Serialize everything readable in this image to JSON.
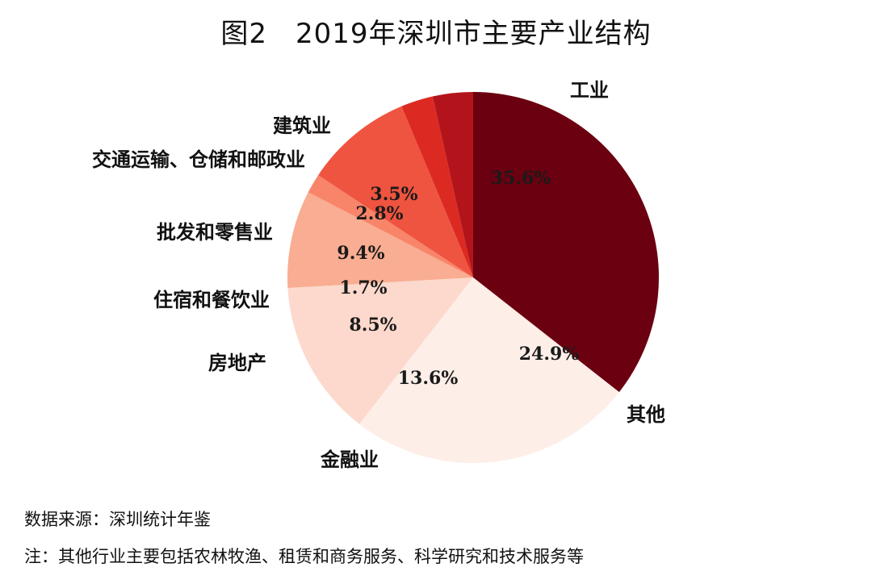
{
  "chart_data": {
    "type": "pie",
    "title": "图2　2019年深圳市主要产业结构",
    "slices": [
      {
        "label": "工业",
        "value": 35.6,
        "value_label": "35.6%",
        "color": "#6b0010"
      },
      {
        "label": "其他",
        "value": 24.9,
        "value_label": "24.9%",
        "color": "#fdeee8"
      },
      {
        "label": "金融业",
        "value": 13.6,
        "value_label": "13.6%",
        "color": "#fcd9cc"
      },
      {
        "label": "房地产",
        "value": 8.5,
        "value_label": "8.5%",
        "color": "#f9ad92"
      },
      {
        "label": "住宿和餐饮业",
        "value": 1.7,
        "value_label": "1.7%",
        "color": "#f88469"
      },
      {
        "label": "批发和零售业",
        "value": 9.4,
        "value_label": "9.4%",
        "color": "#ef5440"
      },
      {
        "label": "交通运输、仓储和邮政业",
        "value": 2.8,
        "value_label": "2.8%",
        "color": "#dc2a22"
      },
      {
        "label": "建筑业",
        "value": 3.5,
        "value_label": "3.5%",
        "color": "#b3141c"
      }
    ]
  },
  "notes": {
    "source": "数据来源：深圳统计年鉴",
    "other": "注：其他行业主要包括农林牧渔、租赁和商务服务、科学研究和技术服务等"
  }
}
